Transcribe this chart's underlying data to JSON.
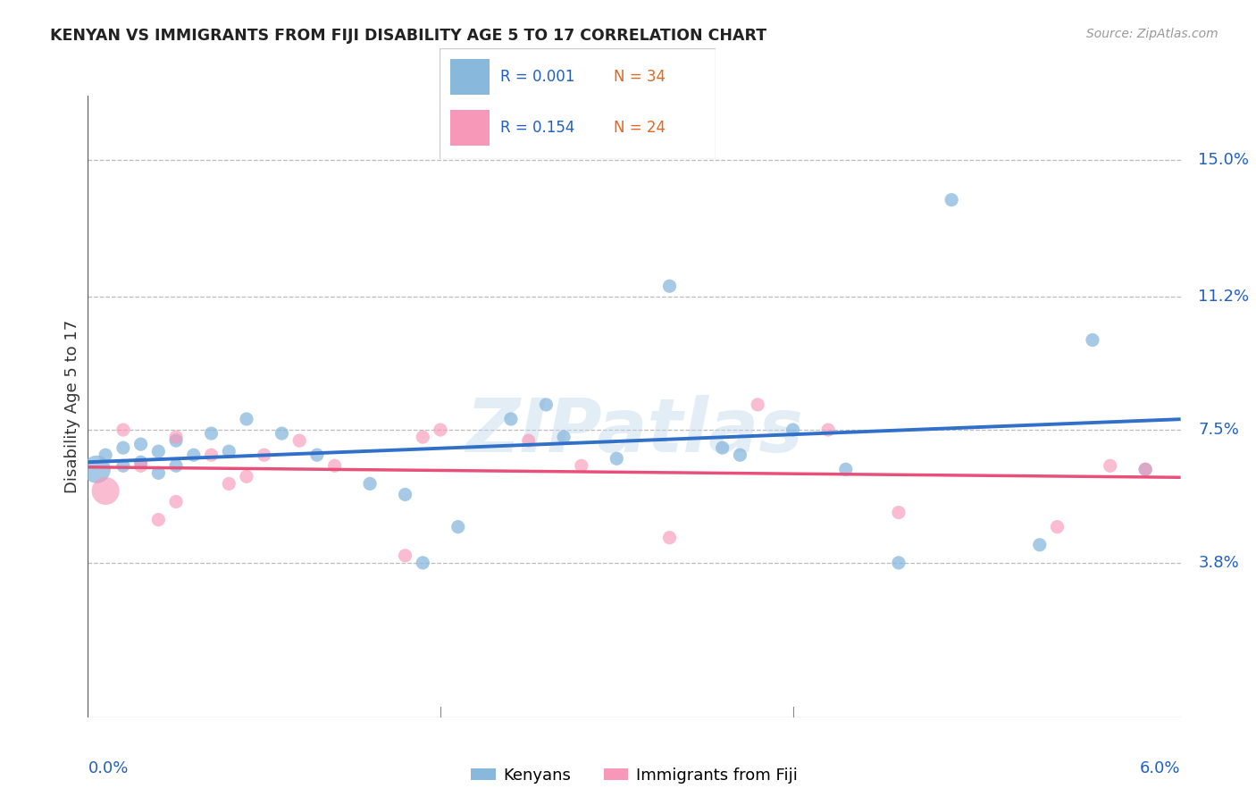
{
  "title": "KENYAN VS IMMIGRANTS FROM FIJI DISABILITY AGE 5 TO 17 CORRELATION CHART",
  "source": "Source: ZipAtlas.com",
  "ylabel": "Disability Age 5 to 17",
  "ytick_labels": [
    "3.8%",
    "7.5%",
    "11.2%",
    "15.0%"
  ],
  "ytick_values": [
    0.038,
    0.075,
    0.112,
    0.15
  ],
  "xlim": [
    0.0,
    0.062
  ],
  "ylim": [
    -0.005,
    0.168
  ],
  "legend_blue_r": "R = 0.001",
  "legend_blue_n": "N = 34",
  "legend_pink_r": "R = 0.154",
  "legend_pink_n": "N = 24",
  "legend_label_blue": "Kenyans",
  "legend_label_pink": "Immigrants from Fiji",
  "blue_color": "#89b8dd",
  "pink_color": "#f898b8",
  "blue_line_color": "#3070c8",
  "pink_line_color": "#e8507a",
  "watermark": "ZIPatlas",
  "blue_x": [
    0.0005,
    0.001,
    0.002,
    0.002,
    0.003,
    0.003,
    0.004,
    0.004,
    0.005,
    0.005,
    0.006,
    0.007,
    0.008,
    0.009,
    0.011,
    0.013,
    0.016,
    0.018,
    0.021,
    0.024,
    0.027,
    0.03,
    0.033,
    0.037,
    0.04,
    0.043,
    0.046,
    0.026,
    0.036,
    0.049,
    0.054,
    0.057,
    0.06,
    0.019
  ],
  "blue_y": [
    0.064,
    0.068,
    0.07,
    0.065,
    0.071,
    0.066,
    0.063,
    0.069,
    0.072,
    0.065,
    0.068,
    0.074,
    0.069,
    0.078,
    0.074,
    0.068,
    0.06,
    0.057,
    0.048,
    0.078,
    0.073,
    0.067,
    0.115,
    0.068,
    0.075,
    0.064,
    0.038,
    0.082,
    0.07,
    0.139,
    0.043,
    0.1,
    0.064,
    0.038
  ],
  "pink_x": [
    0.001,
    0.002,
    0.003,
    0.004,
    0.005,
    0.005,
    0.007,
    0.008,
    0.009,
    0.01,
    0.012,
    0.014,
    0.018,
    0.019,
    0.02,
    0.025,
    0.028,
    0.033,
    0.038,
    0.042,
    0.046,
    0.055,
    0.058,
    0.06
  ],
  "pink_y": [
    0.058,
    0.075,
    0.065,
    0.05,
    0.073,
    0.055,
    0.068,
    0.06,
    0.062,
    0.068,
    0.072,
    0.065,
    0.04,
    0.073,
    0.075,
    0.072,
    0.065,
    0.045,
    0.082,
    0.075,
    0.052,
    0.048,
    0.065,
    0.064
  ],
  "blue_dot_sizes": [
    500,
    120,
    120,
    120,
    120,
    120,
    120,
    120,
    120,
    120,
    120,
    120,
    120,
    120,
    120,
    120,
    120,
    120,
    120,
    120,
    120,
    120,
    120,
    120,
    120,
    120,
    120,
    120,
    120,
    120,
    120,
    120,
    120,
    120
  ],
  "pink_dot_sizes": [
    500,
    120,
    120,
    120,
    120,
    120,
    120,
    120,
    120,
    120,
    120,
    120,
    120,
    120,
    120,
    120,
    120,
    120,
    120,
    120,
    120,
    120,
    120,
    120
  ]
}
